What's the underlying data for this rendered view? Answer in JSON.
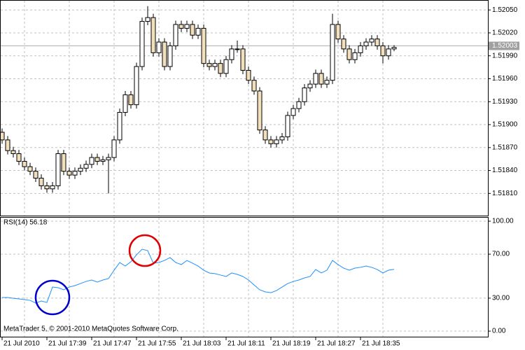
{
  "chart_data": [
    {
      "type": "candlestick",
      "open": [
        1.5189,
        1.5188,
        1.51866,
        1.51862,
        1.51852,
        1.51845,
        1.51839,
        1.5183,
        1.5182,
        1.51816,
        1.5182,
        1.51862,
        1.51839,
        1.51834,
        1.51839,
        1.51843,
        1.51848,
        1.51857,
        1.51852,
        1.51854,
        1.51857,
        1.5188,
        1.51916,
        1.51939,
        1.51926,
        1.51976,
        1.52035,
        1.5204,
        1.51994,
        1.52008,
        1.51976,
        1.52003,
        1.52031,
        1.52026,
        1.52031,
        1.52017,
        1.52026,
        1.5198,
        1.51976,
        1.5198,
        1.51967,
        1.51985,
        1.51999,
        1.51999,
        1.51971,
        1.51958,
        1.51944,
        1.51893,
        1.5188,
        1.51875,
        1.5188,
        1.51884,
        1.51912,
        1.51921,
        1.5193,
        1.51948,
        1.51953,
        1.51967,
        1.51953,
        1.51958,
        1.52031,
        1.52012,
        1.51999,
        1.51985,
        1.51994,
        1.52003,
        1.52008,
        1.52012,
        1.52003,
        1.5199,
        1.51999
      ],
      "high": [
        1.51895,
        1.51885,
        1.51871,
        1.51867,
        1.51857,
        1.5185,
        1.51844,
        1.51835,
        1.51825,
        1.51825,
        1.51867,
        1.51867,
        1.51844,
        1.51844,
        1.51848,
        1.51853,
        1.51862,
        1.51862,
        1.51859,
        1.51862,
        1.51885,
        1.51921,
        1.51944,
        1.51944,
        1.51981,
        1.5204,
        1.52055,
        1.52045,
        1.52013,
        1.52013,
        1.52008,
        1.52036,
        1.52036,
        1.52036,
        1.52036,
        1.52031,
        1.52031,
        1.51985,
        1.51985,
        1.51985,
        1.5199,
        1.52004,
        1.5201,
        1.52004,
        1.51976,
        1.51963,
        1.51949,
        1.51898,
        1.51885,
        1.51885,
        1.51889,
        1.51917,
        1.51926,
        1.51935,
        1.51953,
        1.51958,
        1.51972,
        1.51972,
        1.51963,
        1.52045,
        1.52036,
        1.52017,
        1.52004,
        1.51999,
        1.52008,
        1.52013,
        1.52017,
        1.52017,
        1.52008,
        1.52004,
        1.52004
      ],
      "low": [
        1.51875,
        1.51861,
        1.51857,
        1.51847,
        1.5184,
        1.51834,
        1.51825,
        1.51815,
        1.51811,
        1.51811,
        1.51815,
        1.51834,
        1.51829,
        1.51829,
        1.51834,
        1.51838,
        1.51843,
        1.51847,
        1.51847,
        1.5181,
        1.51852,
        1.51875,
        1.51911,
        1.51921,
        1.51921,
        1.51971,
        1.5203,
        1.51989,
        1.51989,
        1.51971,
        1.51971,
        1.51998,
        1.52021,
        1.52021,
        1.52012,
        1.52012,
        1.51975,
        1.51971,
        1.51971,
        1.51962,
        1.51962,
        1.5198,
        1.51994,
        1.51966,
        1.51953,
        1.51939,
        1.51888,
        1.51875,
        1.5187,
        1.5187,
        1.51875,
        1.51879,
        1.51907,
        1.51916,
        1.51925,
        1.51943,
        1.51948,
        1.51948,
        1.51948,
        1.51953,
        1.52007,
        1.51994,
        1.5198,
        1.5198,
        1.51989,
        1.51998,
        1.52003,
        1.51998,
        1.5198,
        1.51985,
        1.51996
      ],
      "close": [
        1.5188,
        1.51866,
        1.51862,
        1.51852,
        1.51845,
        1.51839,
        1.5183,
        1.5182,
        1.51816,
        1.5182,
        1.51862,
        1.51839,
        1.51834,
        1.51839,
        1.51843,
        1.51848,
        1.51857,
        1.51852,
        1.51854,
        1.51857,
        1.5188,
        1.51916,
        1.51939,
        1.51926,
        1.51976,
        1.52035,
        1.5204,
        1.51994,
        1.52008,
        1.51976,
        1.52003,
        1.52031,
        1.52026,
        1.52031,
        1.52017,
        1.52026,
        1.5198,
        1.51976,
        1.5198,
        1.51967,
        1.51985,
        1.51999,
        1.51999,
        1.51971,
        1.51958,
        1.51944,
        1.51893,
        1.5188,
        1.51875,
        1.5188,
        1.51884,
        1.51912,
        1.51921,
        1.5193,
        1.51948,
        1.51953,
        1.51967,
        1.51953,
        1.51958,
        1.52031,
        1.52012,
        1.51999,
        1.51985,
        1.51994,
        1.52003,
        1.52008,
        1.52012,
        1.52003,
        1.5199,
        1.51999,
        1.52001
      ],
      "up_color": "#ffffff",
      "down_color": "#f2dfbd",
      "ylim": [
        1.51781,
        1.52063
      ],
      "yticks": [
        {
          "value": 1.5205,
          "label": "1.52050"
        },
        {
          "value": 1.5202,
          "label": "1.52020"
        },
        {
          "value": 1.5199,
          "label": "1.51990"
        },
        {
          "value": 1.5196,
          "label": "1.51960"
        },
        {
          "value": 1.5193,
          "label": "1.51930"
        },
        {
          "value": 1.519,
          "label": "1.51900"
        },
        {
          "value": 1.5187,
          "label": "1.51870"
        },
        {
          "value": 1.5184,
          "label": "1.51840"
        },
        {
          "value": 1.5181,
          "label": "1.51810"
        }
      ],
      "bid": 1.52003,
      "grid": true
    },
    {
      "type": "line",
      "title": "RSI(14) 56.18",
      "categories": [
        "21 Jul 2010",
        null,
        null,
        null,
        null,
        null,
        null,
        null,
        "21 Jul 17:39",
        null,
        null,
        null,
        null,
        null,
        null,
        null,
        "21 Jul 17:47",
        null,
        null,
        null,
        null,
        null,
        null,
        null,
        "21 Jul 17:55",
        null,
        null,
        null,
        null,
        null,
        null,
        null,
        "21 Jul 18:03",
        null,
        null,
        null,
        null,
        null,
        null,
        null,
        "21 Jul 18:11",
        null,
        null,
        null,
        null,
        null,
        null,
        null,
        "21 Jul 18:19",
        null,
        null,
        null,
        null,
        null,
        null,
        null,
        "21 Jul 18:27",
        null,
        null,
        null,
        null,
        null,
        null,
        null,
        "21 Jul 18:35",
        null,
        null,
        null,
        null,
        null,
        null
      ],
      "values": [
        30.6,
        30.6,
        29.9,
        29.3,
        28.7,
        28.0,
        25.5,
        27.4,
        26.1,
        40.1,
        39.5,
        37.6,
        40.1,
        41.4,
        43.3,
        45.2,
        46.5,
        44.6,
        46.5,
        47.8,
        55.4,
        62.4,
        59.2,
        63.1,
        69.4,
        74.5,
        73.2,
        61.8,
        62.4,
        64.3,
        66.9,
        62.4,
        60.5,
        64.3,
        61.8,
        59.2,
        55.4,
        52.9,
        52.3,
        51.0,
        49.7,
        52.9,
        51.6,
        49.7,
        46.5,
        42.0,
        37.6,
        35.7,
        35.0,
        36.9,
        40.1,
        43.3,
        45.2,
        46.5,
        48.4,
        49.7,
        56.0,
        52.9,
        55.4,
        64.3,
        60.5,
        57.3,
        55.4,
        57.3,
        58.0,
        59.2,
        58.0,
        56.0,
        52.9,
        55.4,
        56.18
      ],
      "color": "#1e90ff",
      "ylim": [
        -5.7,
        103.8
      ],
      "yticks": [
        {
          "value": 100,
          "label": "100.00"
        },
        {
          "value": 70,
          "label": "70.00"
        },
        {
          "value": 30,
          "label": "30.00"
        },
        {
          "value": 0,
          "label": "0.00"
        }
      ],
      "footer": "MetaTrader 5, © 2001-2010 MetaQuotes Software Corp.",
      "grid": true
    }
  ]
}
